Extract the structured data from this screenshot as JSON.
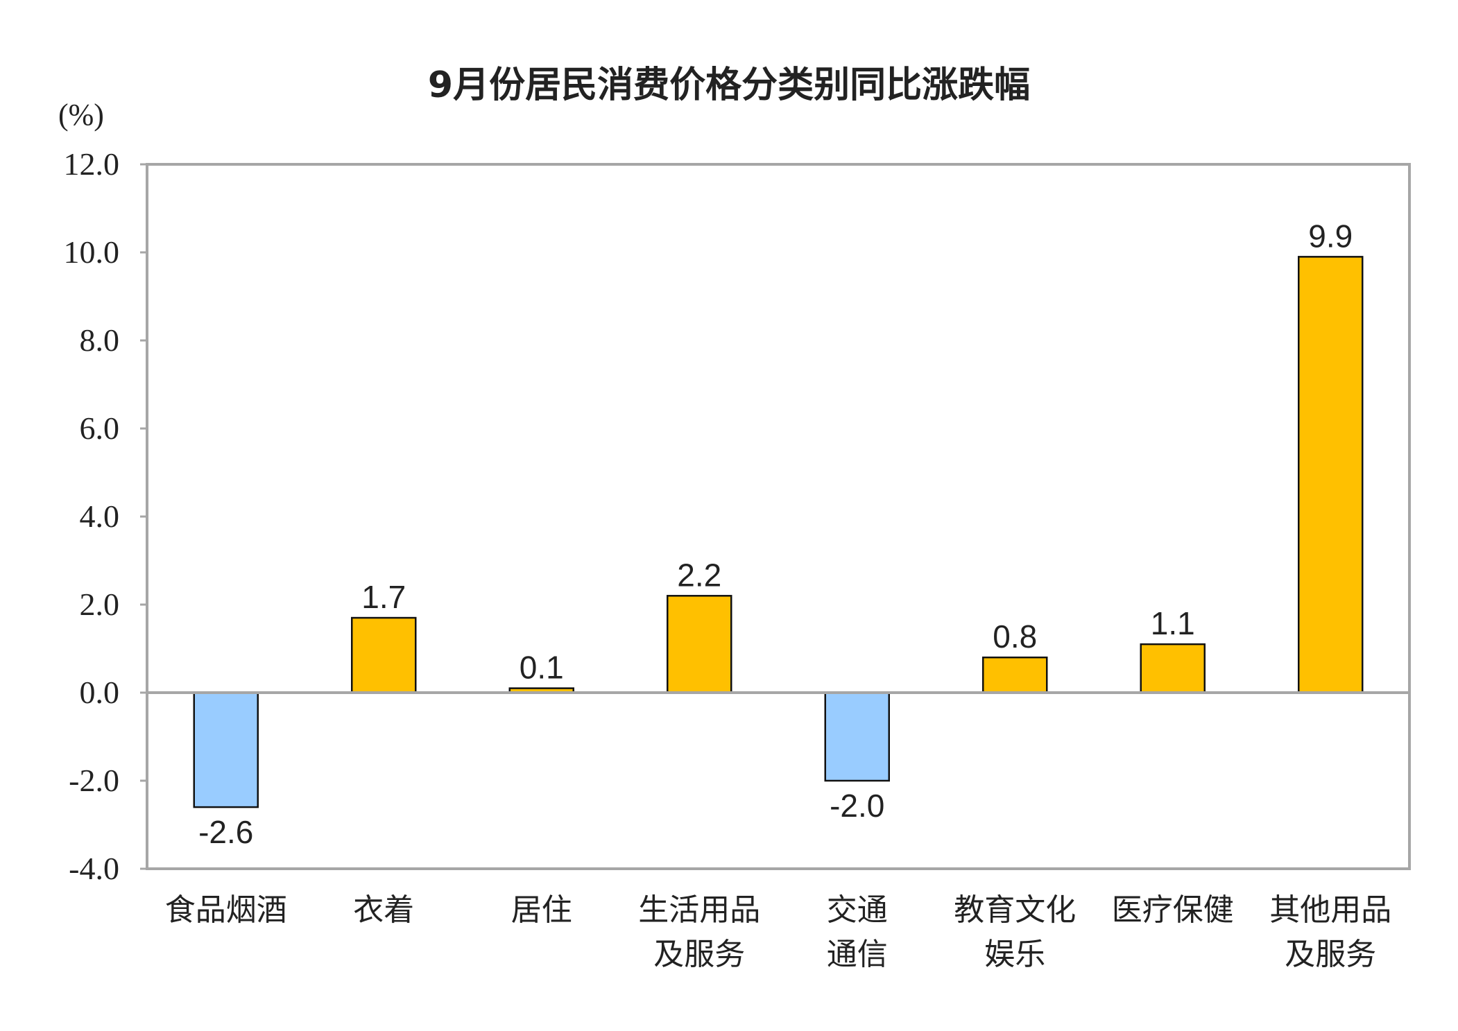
{
  "chart_data": {
    "type": "bar",
    "title": "9月份居民消费价格分类别同比涨跌幅",
    "ylabel": "(%)",
    "xlabel": "",
    "categories": [
      [
        "食品烟酒"
      ],
      [
        "衣着"
      ],
      [
        "居住"
      ],
      [
        "生活用品",
        "及服务"
      ],
      [
        "交通",
        "通信"
      ],
      [
        "教育文化",
        "娱乐"
      ],
      [
        "医疗保健"
      ],
      [
        "其他用品",
        "及服务"
      ]
    ],
    "values": [
      -2.6,
      1.7,
      0.1,
      2.2,
      -2.0,
      0.8,
      1.1,
      9.9
    ],
    "data_labels": [
      "-2.6",
      "1.7",
      "0.1",
      "2.2",
      "-2.0",
      "0.8",
      "1.1",
      "9.9"
    ],
    "ylim": [
      -4,
      12
    ],
    "yticks": [
      "-4.0",
      "-2.0",
      "0.0",
      "2.0",
      "4.0",
      "6.0",
      "8.0",
      "10.0",
      "12.0"
    ],
    "grid": false,
    "colors": {
      "positive": "#FFC000",
      "negative": "#99CCFF",
      "frame": "#A6A6A6"
    }
  }
}
